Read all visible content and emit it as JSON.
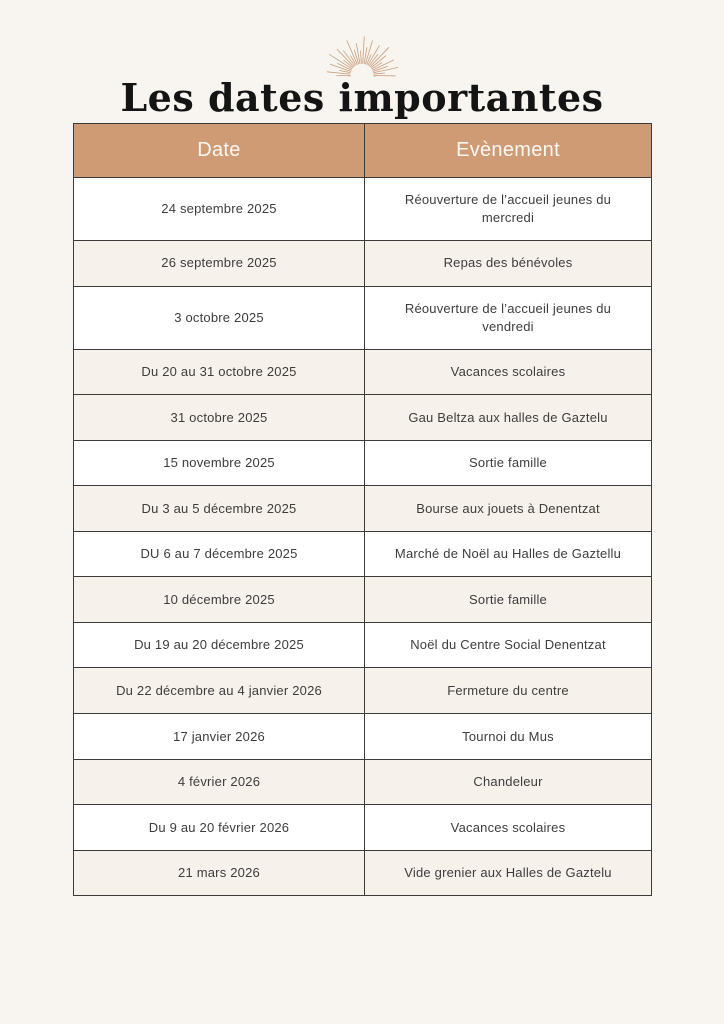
{
  "page": {
    "title": "Les dates importantes"
  },
  "icons": {
    "sunburst": "sunburst-rays-ornament"
  },
  "colors": {
    "page_bg": "#F8F5F0",
    "header_bg": "#CE9B74",
    "header_text": "#FBF8F3",
    "shade_bg": "#F6F1EB",
    "row_bg": "#FFFFFF",
    "border": "#3B3B3B",
    "cell_text": "#3D3D3D",
    "title_color": "#141414",
    "accent": "#C79B7A"
  },
  "table": {
    "headers": [
      "Date",
      "Evènement"
    ],
    "rows": [
      {
        "date": "24 septembre 2025",
        "event": "Réouverture de l’accueil jeunes du mercredi",
        "shade": false
      },
      {
        "date": "26 septembre 2025",
        "event": "Repas des bénévoles",
        "shade": true
      },
      {
        "date": "3 octobre 2025",
        "event": "Réouverture de l’accueil jeunes du vendredi",
        "shade": false
      },
      {
        "date": "Du 20 au 31 octobre 2025",
        "event": "Vacances scolaires",
        "shade": true
      },
      {
        "date": "31 octobre 2025",
        "event": "Gau Beltza aux halles de Gaztelu",
        "shade": true
      },
      {
        "date": "15 novembre 2025",
        "event": "Sortie famille",
        "shade": false
      },
      {
        "date": "Du 3 au 5 décembre 2025",
        "event": "Bourse aux jouets à Denentzat",
        "shade": true
      },
      {
        "date": "DU 6 au 7 décembre 2025",
        "event": "Marché de Noël au Halles de Gaztellu",
        "shade": false
      },
      {
        "date": "10 décembre 2025",
        "event": "Sortie famille",
        "shade": true
      },
      {
        "date": "Du 19 au 20 décembre 2025",
        "event": "Noël du Centre Social Denentzat",
        "shade": false
      },
      {
        "date": "Du 22 décembre au 4 janvier 2026",
        "event": "Fermeture du centre",
        "shade": true
      },
      {
        "date": "17 janvier 2026",
        "event": "Tournoi du Mus",
        "shade": false
      },
      {
        "date": "4 février 2026",
        "event": "Chandeleur",
        "shade": true
      },
      {
        "date": "Du 9 au 20 février 2026",
        "event": "Vacances scolaires",
        "shade": false
      },
      {
        "date": "21 mars 2026",
        "event": "Vide grenier aux Halles de Gaztelu",
        "shade": true
      }
    ]
  }
}
